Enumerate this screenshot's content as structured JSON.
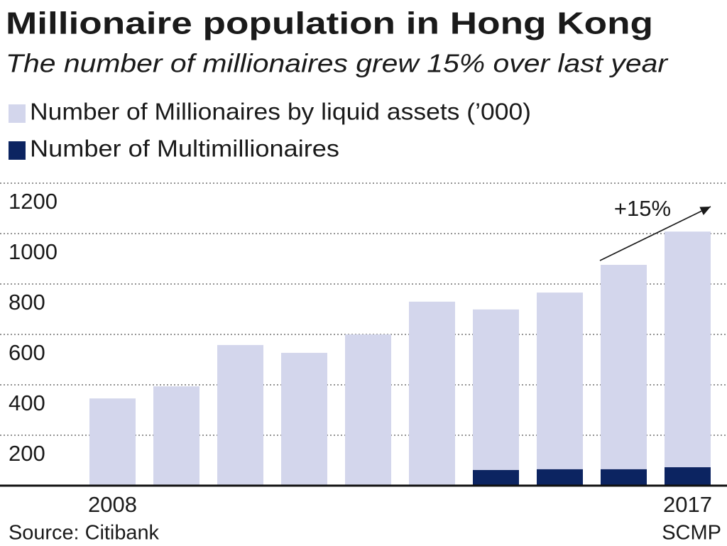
{
  "chart_data": {
    "type": "bar",
    "stacked": false,
    "title": "Millionaire population in Hong Kong",
    "subtitle": "The number of millionaires grew 15% over last year",
    "annotation": "+15%",
    "source": "Source: Citibank",
    "credit": "SCMP",
    "categories": [
      "2008",
      null,
      null,
      null,
      null,
      null,
      null,
      null,
      null,
      "2017"
    ],
    "series": [
      {
        "name": "Number of Millionaires by liquid assets (’000)",
        "color": "#d3d6ec",
        "values": [
          346,
          394,
          558,
          527,
          600,
          730,
          699,
          766,
          876,
          1008
        ]
      },
      {
        "name": "Number of Multimillionaires",
        "color": "#0c2461",
        "values": [
          null,
          null,
          null,
          null,
          null,
          null,
          62,
          65,
          65,
          73
        ]
      }
    ],
    "ylim": [
      0,
      1200
    ],
    "yticks": [
      200,
      400,
      600,
      800,
      1000,
      1200
    ],
    "grid": true
  }
}
